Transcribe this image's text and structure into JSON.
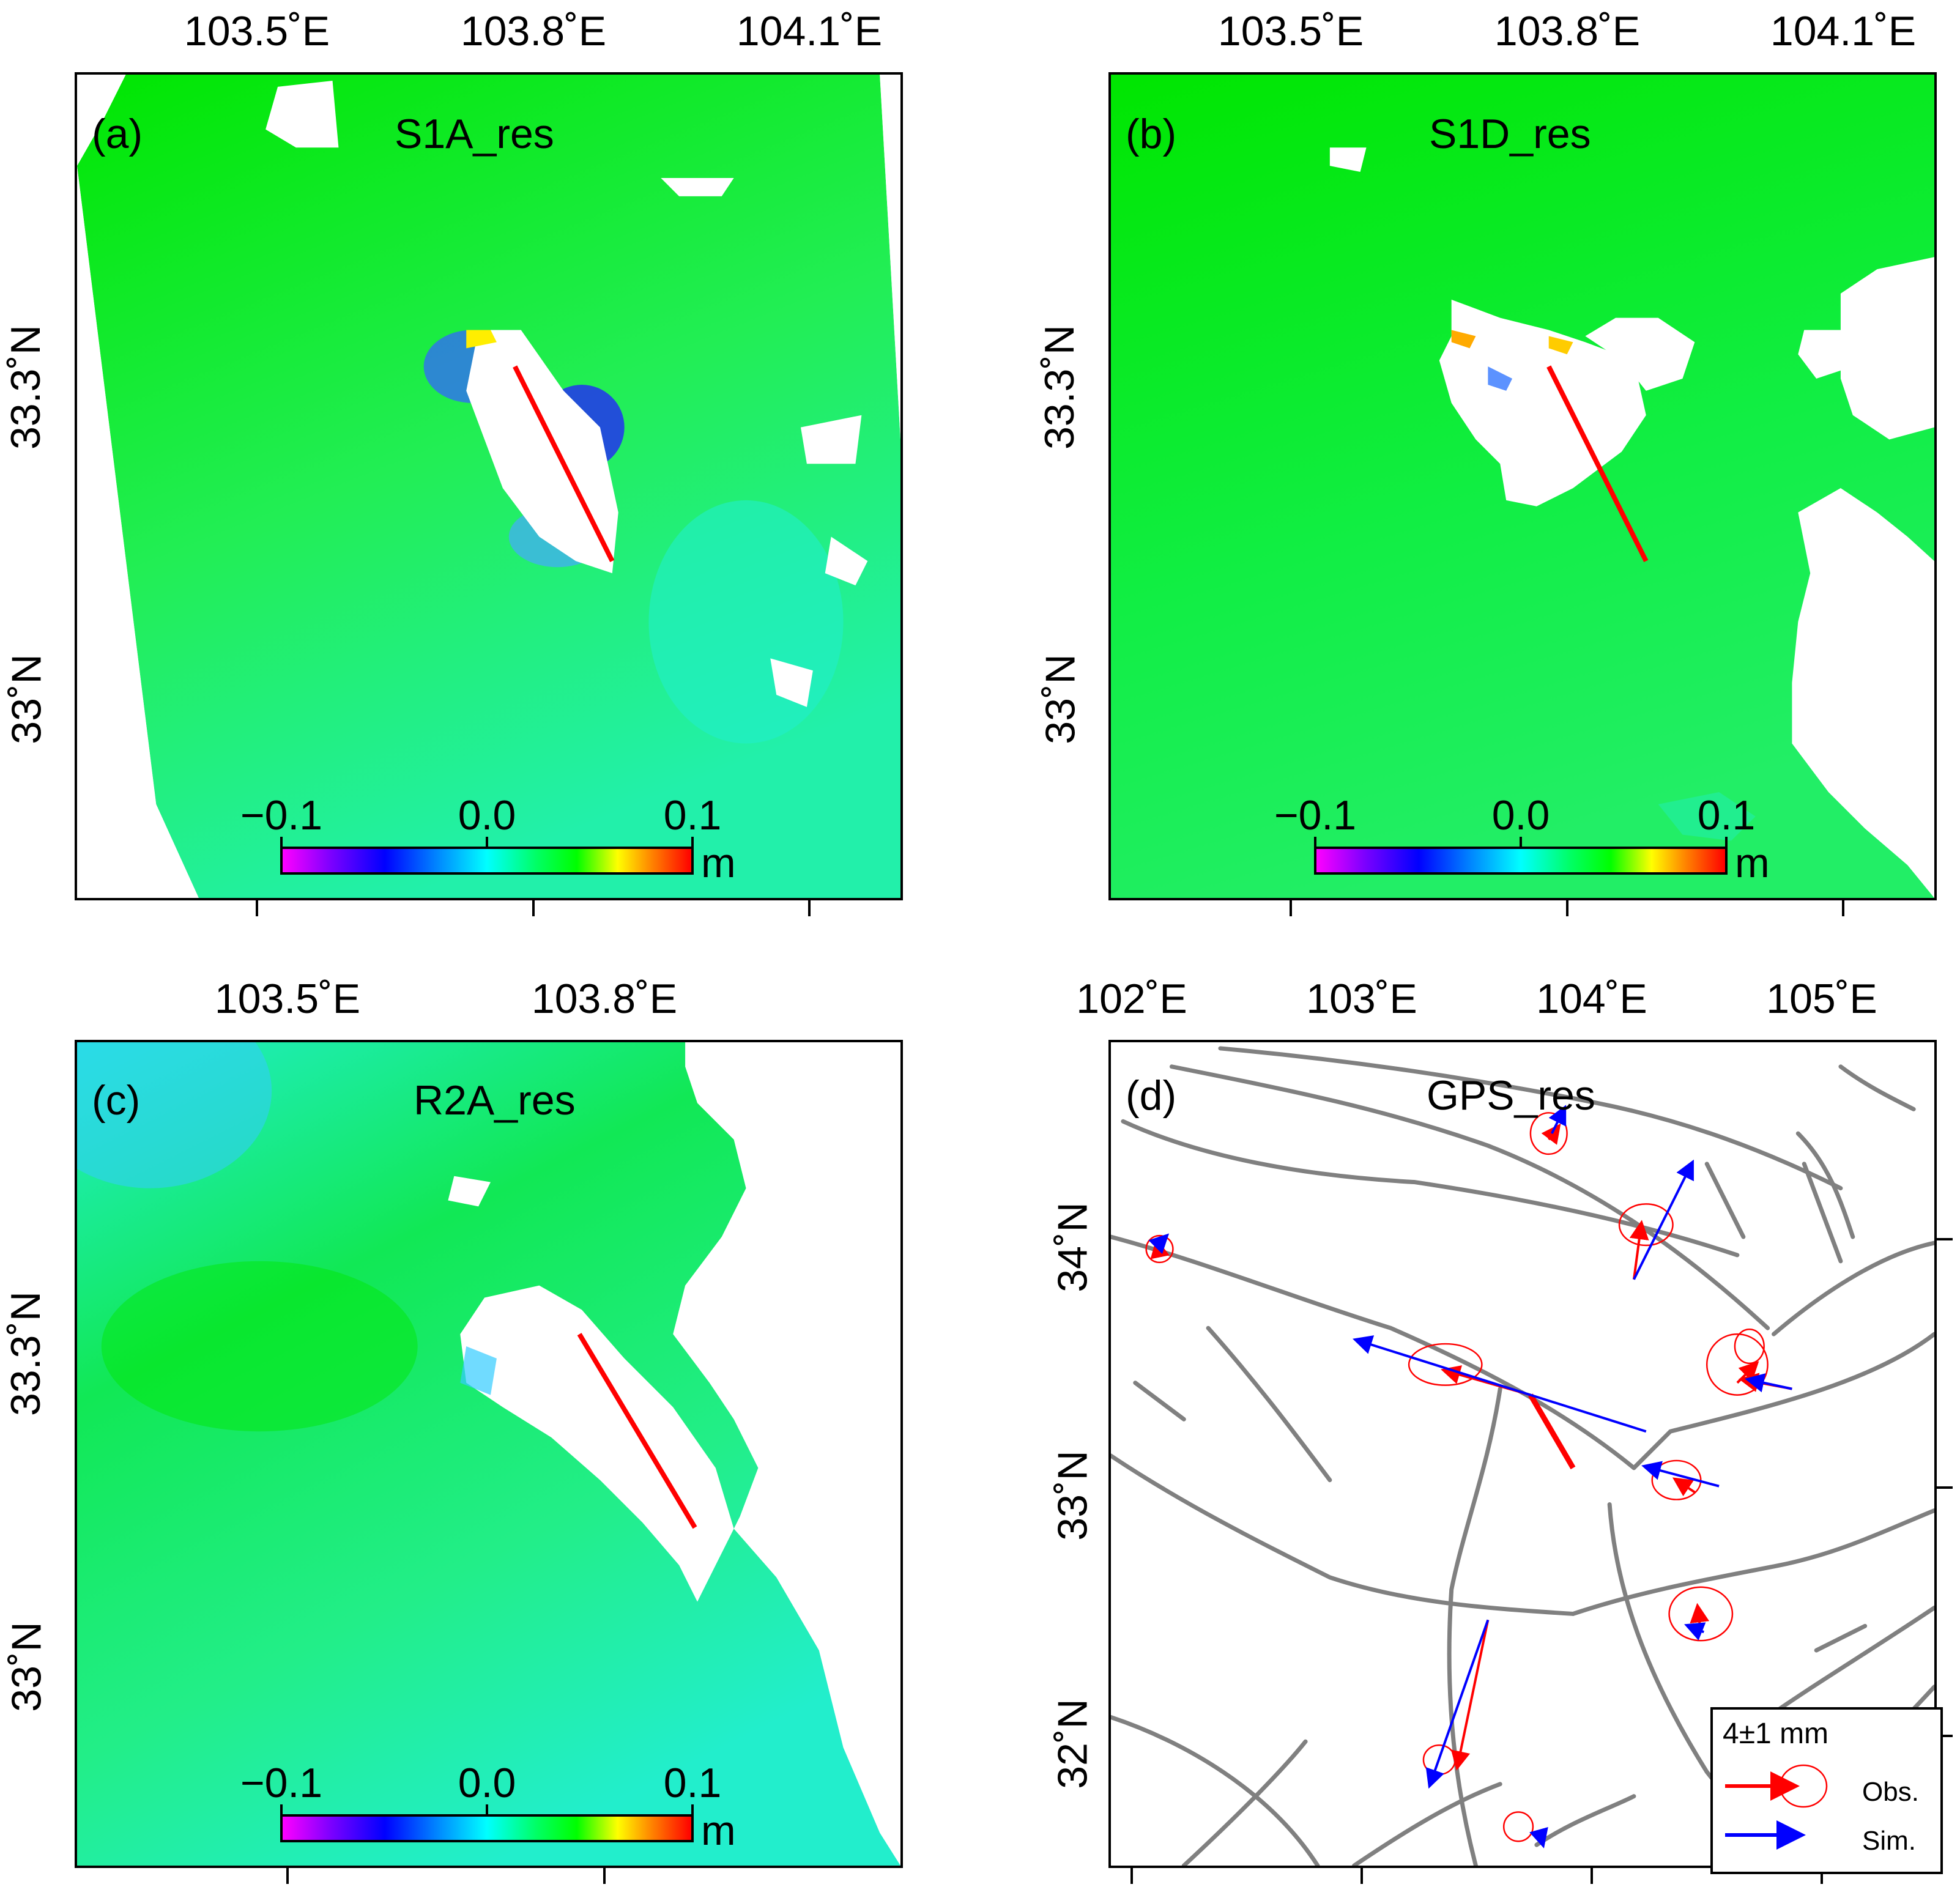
{
  "panels": {
    "a": {
      "tag": "(a)",
      "title": "S1A_res",
      "xticks": [
        "103.5˚E",
        "103.8˚E",
        "104.1˚E"
      ],
      "yticks": [
        "33.3˚N",
        "33˚N"
      ]
    },
    "b": {
      "tag": "(b)",
      "title": "S1D_res",
      "xticks": [
        "103.5˚E",
        "103.8˚E",
        "104.1˚E"
      ],
      "yticks": [
        "33.3˚N",
        "33˚N"
      ]
    },
    "c": {
      "tag": "(c)",
      "title": "R2A_res",
      "xticks": [
        "103.5˚E",
        "103.8˚E"
      ],
      "yticks": [
        "33.3˚N",
        "33˚N"
      ]
    },
    "d": {
      "tag": "(d)",
      "title": "GPS_res",
      "xticks": [
        "102˚E",
        "103˚E",
        "104˚E",
        "105˚E"
      ],
      "yticks": [
        "34˚N",
        "33˚N",
        "32˚N"
      ]
    }
  },
  "colorbar": {
    "ticks": [
      "−0.1",
      "0.0",
      "0.1"
    ],
    "unit": "m",
    "range": [
      -0.1,
      0.1
    ]
  },
  "legend": {
    "scale": "4±1 mm",
    "obs": "Obs.",
    "sim": "Sim."
  },
  "colors": {
    "obs": "#ff0000",
    "sim": "#0000ff",
    "fault": "#808080",
    "rupture": "#ff0000",
    "field": "#00ee00"
  }
}
